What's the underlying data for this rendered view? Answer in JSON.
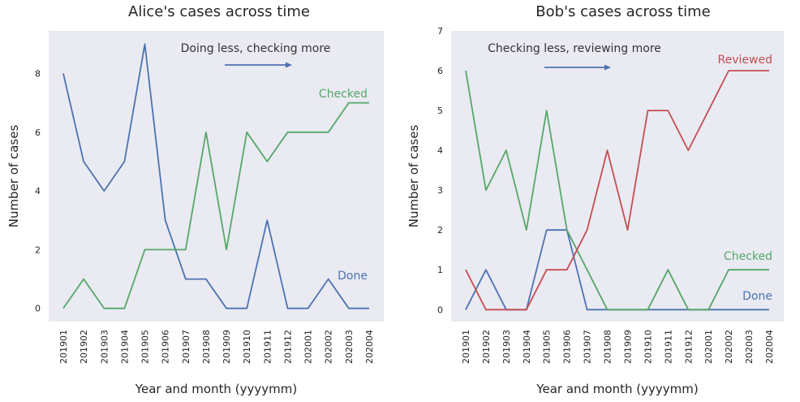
{
  "chart_data": [
    {
      "type": "line",
      "title": "Alice's cases across time",
      "xlabel": "Year and month (yyyymm)",
      "ylabel": "Number of cases",
      "categories": [
        "201901",
        "201902",
        "201903",
        "201904",
        "201905",
        "201906",
        "201907",
        "201908",
        "201909",
        "201910",
        "201911",
        "201912",
        "202001",
        "202002",
        "202003",
        "202004"
      ],
      "yticks": [
        0,
        2,
        4,
        6,
        8
      ],
      "ylim": [
        -0.45,
        9.45
      ],
      "grid": false,
      "background": "#eaeaf2",
      "series": [
        {
          "name": "Done",
          "color": "#4c72b0",
          "values": [
            8,
            5,
            4,
            5,
            9,
            3,
            1,
            1,
            0,
            0,
            3,
            0,
            0,
            1,
            0,
            0
          ]
        },
        {
          "name": "Checked",
          "color": "#55a868",
          "values": [
            0,
            1,
            0,
            0,
            2,
            2,
            2,
            6,
            2,
            6,
            5,
            6,
            6,
            6,
            7,
            7
          ]
        }
      ],
      "annotation": {
        "text": "Doing less, checking more",
        "arrow": "right"
      }
    },
    {
      "type": "line",
      "title": "Bob's cases across time",
      "xlabel": "Year and month (yyyymm)",
      "ylabel": "Number of cases",
      "categories": [
        "201901",
        "201902",
        "201903",
        "201904",
        "201905",
        "201906",
        "201907",
        "201908",
        "201909",
        "201910",
        "201911",
        "201912",
        "202001",
        "202002",
        "202003",
        "202004"
      ],
      "yticks": [
        0,
        1,
        2,
        3,
        4,
        5,
        6,
        7
      ],
      "ylim": [
        -0.3,
        7
      ],
      "grid": false,
      "background": "#eaeaf2",
      "series": [
        {
          "name": "Done",
          "color": "#4c72b0",
          "values": [
            0,
            1,
            0,
            0,
            2,
            2,
            0,
            0,
            0,
            0,
            0,
            0,
            0,
            0,
            0,
            0
          ]
        },
        {
          "name": "Checked",
          "color": "#55a868",
          "values": [
            6,
            3,
            4,
            2,
            5,
            2,
            1,
            0,
            0,
            0,
            1,
            0,
            0,
            1,
            1,
            1
          ]
        },
        {
          "name": "Reviewed",
          "color": "#c44e52",
          "values": [
            1,
            0,
            0,
            0,
            1,
            1,
            2,
            4,
            2,
            5,
            5,
            4,
            5,
            6,
            6,
            6
          ]
        }
      ],
      "annotation": {
        "text": "Checking less, reviewing more",
        "arrow": "right"
      }
    }
  ]
}
